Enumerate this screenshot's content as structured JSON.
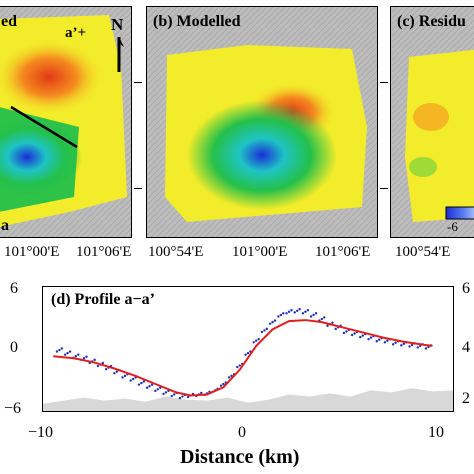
{
  "panels": {
    "a": {
      "label_partial": "ed",
      "corner_label": "a",
      "aprime_label": "a’+",
      "north_label": "N"
    },
    "b": {
      "label": "(b) Modelled"
    },
    "c": {
      "label": "(c) Residu",
      "colorbar_tick": "-6"
    }
  },
  "map_axis": {
    "labels": [
      "101°00'E",
      "101°06'E",
      "100°54'E",
      "101°00'E",
      "101°06'E",
      "100°54'E"
    ]
  },
  "profile": {
    "title": "(d) Profile a−a’",
    "xlabel": "Distance (km)",
    "x_ticks": [
      "−10",
      "0",
      "10"
    ],
    "y_ticks": [
      "6",
      "0",
      "−6"
    ],
    "right_ticks": [
      "4",
      "2"
    ],
    "partial_right_top": "6"
  },
  "chart_data": {
    "type": "scatter",
    "title": "(d) Profile a−a’",
    "xlabel": "Distance (km)",
    "ylabel": "",
    "xlim": [
      -10,
      10
    ],
    "ylim": [
      -6,
      6
    ],
    "series": [
      {
        "kind": "observed",
        "color": "#1a2fb0",
        "x": [
          -9.2,
          -8.8,
          -8.4,
          -8.0,
          -7.6,
          -7.2,
          -6.8,
          -6.4,
          -6.0,
          -5.6,
          -5.2,
          -4.8,
          -4.4,
          -4.0,
          -3.6,
          -3.2,
          -2.8,
          -2.4,
          -2.0,
          -1.6,
          -1.2,
          -0.8,
          -0.4,
          0.0,
          0.4,
          0.8,
          1.2,
          1.6,
          2.0,
          2.4,
          2.8,
          3.2,
          3.6,
          4.0,
          4.4,
          4.8,
          5.2,
          5.6,
          6.0,
          6.4,
          6.8,
          7.2,
          7.6,
          8.0,
          8.4,
          8.8
        ],
        "y": [
          -0.1,
          -0.4,
          -0.7,
          -0.9,
          -1.2,
          -1.5,
          -1.8,
          -2.2,
          -2.6,
          -2.9,
          -3.3,
          -3.6,
          -3.9,
          -4.2,
          -4.4,
          -4.6,
          -4.5,
          -4.4,
          -4.3,
          -4.0,
          -3.4,
          -2.6,
          -1.6,
          -0.4,
          0.8,
          1.8,
          2.6,
          3.3,
          3.6,
          3.7,
          3.6,
          3.3,
          2.9,
          2.4,
          2.1,
          1.7,
          1.5,
          1.3,
          1.1,
          0.9,
          0.8,
          0.6,
          0.5,
          0.4,
          0.3,
          0.2
        ]
      },
      {
        "kind": "modelled",
        "color": "#e02020",
        "x": [
          -9.5,
          -8.5,
          -7.5,
          -6.5,
          -5.5,
          -4.5,
          -3.5,
          -2.8,
          -2.0,
          -1.2,
          -0.4,
          0.4,
          1.2,
          2.0,
          2.8,
          3.6,
          4.6,
          5.6,
          6.6,
          7.6,
          8.6,
          9.0
        ],
        "y": [
          -0.7,
          -0.9,
          -1.3,
          -1.9,
          -2.6,
          -3.4,
          -4.2,
          -4.5,
          -4.4,
          -3.7,
          -2.0,
          0.3,
          1.9,
          2.7,
          2.8,
          2.6,
          2.1,
          1.6,
          1.1,
          0.7,
          0.4,
          0.3
        ]
      },
      {
        "kind": "topography",
        "color": "#d8d8d8",
        "x": [
          -10,
          -9,
          -8,
          -7,
          -6,
          -5,
          -4,
          -3,
          -2,
          -1,
          0,
          1,
          2,
          3,
          4,
          5,
          6,
          7,
          8,
          9,
          10
        ],
        "y": [
          -5.3,
          -5.0,
          -4.7,
          -5.0,
          -4.8,
          -5.1,
          -4.6,
          -4.9,
          -5.0,
          -4.7,
          -5.2,
          -4.9,
          -4.4,
          -4.6,
          -4.3,
          -4.6,
          -4.0,
          -4.2,
          -3.8,
          -4.1,
          -4.0
        ]
      }
    ]
  },
  "colors": {
    "red": "#e23b16",
    "orange": "#f58b1f",
    "yellow": "#f3ec2a",
    "green": "#24c04a",
    "cyan": "#1ec4c4",
    "blue": "#1b2ed8",
    "terrain": "#b9b9b9"
  }
}
